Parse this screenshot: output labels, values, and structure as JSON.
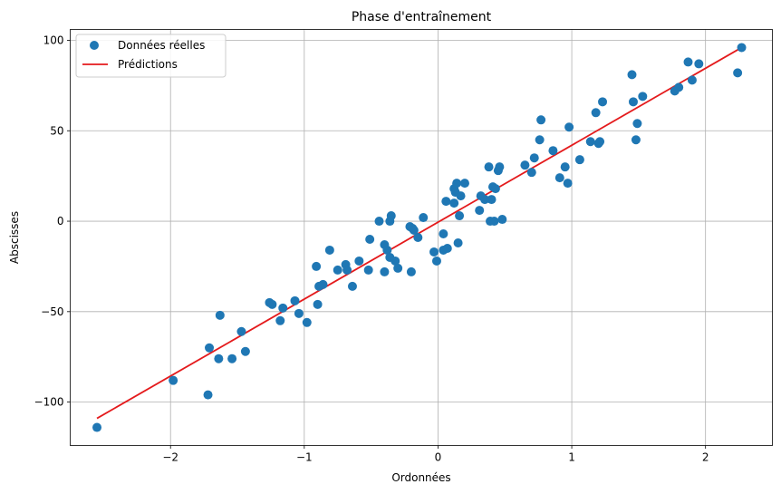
{
  "chart_data": {
    "type": "scatter",
    "title": "Phase d'entraînement",
    "xlabel": "Ordonnées",
    "ylabel": "Abscisses",
    "xlim": [
      -2.75,
      2.5
    ],
    "ylim": [
      -124,
      106
    ],
    "xticks": [
      -2,
      -1,
      0,
      1,
      2
    ],
    "yticks": [
      -100,
      -50,
      0,
      50,
      100
    ],
    "xtick_labels": [
      "−2",
      "−1",
      "0",
      "1",
      "2"
    ],
    "ytick_labels": [
      "−100",
      "−50",
      "0",
      "50",
      "100"
    ],
    "grid": true,
    "legend_position": "top-left",
    "scatter_color": "#1f77b4",
    "line_color": "#e41a1c",
    "series": [
      {
        "name": "Données réelles",
        "kind": "scatter",
        "points": [
          [
            -2.55,
            -114
          ],
          [
            -1.98,
            -88
          ],
          [
            -1.72,
            -96
          ],
          [
            -1.71,
            -70
          ],
          [
            -1.64,
            -76
          ],
          [
            -1.63,
            -52
          ],
          [
            -1.54,
            -76
          ],
          [
            -1.47,
            -61
          ],
          [
            -1.44,
            -72
          ],
          [
            -1.26,
            -45
          ],
          [
            -1.24,
            -46
          ],
          [
            -1.18,
            -55
          ],
          [
            -1.16,
            -48
          ],
          [
            -1.07,
            -44
          ],
          [
            -1.04,
            -51
          ],
          [
            -0.98,
            -56
          ],
          [
            -0.91,
            -25
          ],
          [
            -0.9,
            -46
          ],
          [
            -0.89,
            -36
          ],
          [
            -0.86,
            -35
          ],
          [
            -0.81,
            -16
          ],
          [
            -0.75,
            -27
          ],
          [
            -0.69,
            -24
          ],
          [
            -0.68,
            -27
          ],
          [
            -0.64,
            -36
          ],
          [
            -0.59,
            -22
          ],
          [
            -0.52,
            -27
          ],
          [
            -0.51,
            -10
          ],
          [
            -0.44,
            0
          ],
          [
            -0.4,
            -28
          ],
          [
            -0.4,
            -13
          ],
          [
            -0.38,
            -16
          ],
          [
            -0.36,
            -20
          ],
          [
            -0.36,
            0
          ],
          [
            -0.35,
            3
          ],
          [
            -0.32,
            -22
          ],
          [
            -0.3,
            -26
          ],
          [
            -0.21,
            -3
          ],
          [
            -0.2,
            -28
          ],
          [
            -0.19,
            -4
          ],
          [
            -0.18,
            -5
          ],
          [
            -0.15,
            -9
          ],
          [
            -0.11,
            2
          ],
          [
            -0.03,
            -17
          ],
          [
            -0.01,
            -22
          ],
          [
            0.04,
            -7
          ],
          [
            0.04,
            -16
          ],
          [
            0.06,
            11
          ],
          [
            0.07,
            -15
          ],
          [
            0.12,
            18
          ],
          [
            0.12,
            10
          ],
          [
            0.13,
            16
          ],
          [
            0.14,
            21
          ],
          [
            0.15,
            -12
          ],
          [
            0.16,
            3
          ],
          [
            0.17,
            14
          ],
          [
            0.2,
            21
          ],
          [
            0.31,
            6
          ],
          [
            0.32,
            14
          ],
          [
            0.35,
            12
          ],
          [
            0.38,
            30
          ],
          [
            0.39,
            0
          ],
          [
            0.4,
            12
          ],
          [
            0.41,
            19
          ],
          [
            0.42,
            0
          ],
          [
            0.43,
            18
          ],
          [
            0.45,
            28
          ],
          [
            0.46,
            30
          ],
          [
            0.48,
            1
          ],
          [
            0.65,
            31
          ],
          [
            0.7,
            27
          ],
          [
            0.72,
            35
          ],
          [
            0.76,
            45
          ],
          [
            0.77,
            56
          ],
          [
            0.86,
            39
          ],
          [
            0.91,
            24
          ],
          [
            0.95,
            30
          ],
          [
            0.97,
            21
          ],
          [
            0.98,
            52
          ],
          [
            1.06,
            34
          ],
          [
            1.14,
            44
          ],
          [
            1.18,
            60
          ],
          [
            1.2,
            43
          ],
          [
            1.21,
            44
          ],
          [
            1.23,
            66
          ],
          [
            1.45,
            81
          ],
          [
            1.46,
            66
          ],
          [
            1.48,
            45
          ],
          [
            1.49,
            54
          ],
          [
            1.53,
            69
          ],
          [
            1.77,
            72
          ],
          [
            1.8,
            74
          ],
          [
            1.87,
            88
          ],
          [
            1.9,
            78
          ],
          [
            1.95,
            87
          ],
          [
            2.24,
            82
          ],
          [
            2.27,
            96
          ]
        ]
      },
      {
        "name": "Prédictions",
        "kind": "line",
        "points": [
          [
            -2.55,
            -109
          ],
          [
            2.27,
            96
          ]
        ]
      }
    ]
  }
}
